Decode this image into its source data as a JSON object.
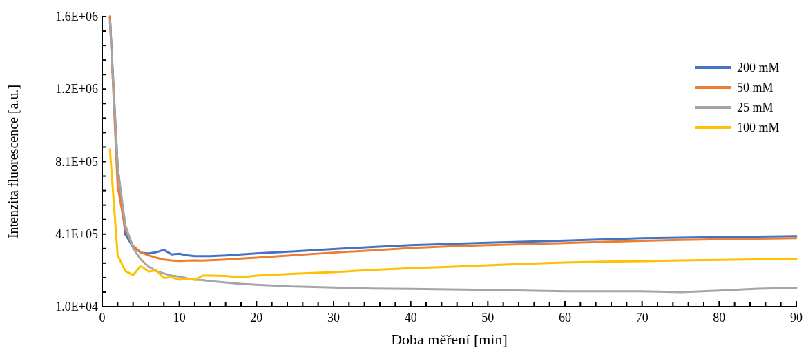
{
  "chart_data": {
    "type": "line",
    "xlabel": "Doba měření [min]",
    "ylabel": "Intenzita fluorescence [a.u.]",
    "x": [
      1,
      2,
      3,
      4,
      5,
      6,
      7,
      8,
      9,
      10,
      11,
      12,
      13,
      14,
      16,
      18,
      20,
      25,
      30,
      35,
      40,
      45,
      50,
      55,
      60,
      65,
      70,
      75,
      80,
      85,
      90
    ],
    "series": [
      {
        "name": "200 mM",
        "color": "#4472c4",
        "values": [
          1600000,
          780000,
          406000,
          338000,
          306000,
          301000,
          308000,
          321000,
          296000,
          300000,
          291000,
          287000,
          287000,
          287000,
          290000,
          296000,
          302000,
          313000,
          325000,
          337000,
          347000,
          354000,
          360000,
          366000,
          372000,
          378000,
          385000,
          388000,
          390000,
          393000,
          396000
        ]
      },
      {
        "name": "50 mM",
        "color": "#ed7d31",
        "values": [
          1600000,
          671000,
          432000,
          343000,
          308000,
          291000,
          278000,
          268000,
          263000,
          260000,
          262000,
          263000,
          262000,
          264000,
          268000,
          273000,
          278000,
          292000,
          306000,
          318000,
          331000,
          340000,
          347000,
          353000,
          358000,
          365000,
          371000,
          375000,
          379000,
          382000,
          385000
        ]
      },
      {
        "name": "25 mM",
        "color": "#a5a5a5",
        "values": [
          1577000,
          772000,
          457000,
          331000,
          268000,
          230000,
          205000,
          192000,
          180000,
          174000,
          165000,
          157000,
          155000,
          150000,
          142000,
          135000,
          130000,
          120000,
          115000,
          109000,
          107000,
          104000,
          102000,
          98000,
          94000,
          94000,
          94000,
          89000,
          98000,
          108000,
          113000
        ]
      },
      {
        "name": "100 mM",
        "color": "#ffc000",
        "values": [
          872000,
          293000,
          205000,
          183000,
          233000,
          203000,
          208000,
          167000,
          171000,
          157000,
          164000,
          157000,
          180000,
          180000,
          178000,
          170000,
          180000,
          190000,
          199000,
          211000,
          221000,
          228000,
          237000,
          245000,
          252000,
          256000,
          259000,
          263000,
          266000,
          269000,
          272000
        ]
      }
    ],
    "xlim": [
      0,
      90
    ],
    "xticks": [
      0,
      {
        "value": 2,
        "label": null
      },
      {
        "value": 4,
        "label": null
      },
      {
        "value": 6,
        "label": null
      },
      {
        "value": 8,
        "label": null
      },
      10,
      {
        "value": 12,
        "label": null
      },
      {
        "value": 14,
        "label": null
      },
      {
        "value": 16,
        "label": null
      },
      {
        "value": 18,
        "label": null
      },
      20,
      {
        "value": 22,
        "label": null
      },
      {
        "value": 24,
        "label": null
      },
      {
        "value": 26,
        "label": null
      },
      {
        "value": 28,
        "label": null
      },
      30,
      {
        "value": 32,
        "label": null
      },
      {
        "value": 34,
        "label": null
      },
      {
        "value": 36,
        "label": null
      },
      {
        "value": 38,
        "label": null
      },
      40,
      {
        "value": 42,
        "label": null
      },
      {
        "value": 44,
        "label": null
      },
      {
        "value": 46,
        "label": null
      },
      {
        "value": 48,
        "label": null
      },
      50,
      {
        "value": 52,
        "label": null
      },
      {
        "value": 54,
        "label": null
      },
      {
        "value": 56,
        "label": null
      },
      {
        "value": 58,
        "label": null
      },
      60,
      {
        "value": 62,
        "label": null
      },
      {
        "value": 64,
        "label": null
      },
      {
        "value": 66,
        "label": null
      },
      {
        "value": 68,
        "label": null
      },
      70,
      {
        "value": 72,
        "label": null
      },
      {
        "value": 74,
        "label": null
      },
      {
        "value": 76,
        "label": null
      },
      {
        "value": 78,
        "label": null
      },
      80,
      {
        "value": 82,
        "label": null
      },
      {
        "value": 84,
        "label": null
      },
      {
        "value": 86,
        "label": null
      },
      {
        "value": 88,
        "label": null
      },
      90
    ],
    "ylim": [
      10000,
      1600000
    ],
    "yticks": [
      {
        "value": 10000,
        "label": "1.0E+04"
      },
      {
        "value": 89500,
        "label": null
      },
      {
        "value": 169000,
        "label": null
      },
      {
        "value": 248500,
        "label": null
      },
      {
        "value": 328000,
        "label": null
      },
      {
        "value": 407500,
        "label": "4.1E+05"
      },
      {
        "value": 487000,
        "label": null
      },
      {
        "value": 566500,
        "label": null
      },
      {
        "value": 646000,
        "label": null
      },
      {
        "value": 725500,
        "label": null
      },
      {
        "value": 805000,
        "label": "8.1E+05"
      },
      {
        "value": 884500,
        "label": null
      },
      {
        "value": 964000,
        "label": null
      },
      {
        "value": 1043500,
        "label": null
      },
      {
        "value": 1123000,
        "label": null
      },
      {
        "value": 1202500,
        "label": "1.2E+06"
      },
      {
        "value": 1282000,
        "label": null
      },
      {
        "value": 1361500,
        "label": null
      },
      {
        "value": 1441000,
        "label": null
      },
      {
        "value": 1520500,
        "label": null
      },
      {
        "value": 1600000,
        "label": "1.6E+06"
      }
    ],
    "grid": false,
    "legend": "right",
    "marker": "none",
    "line_style": "solid"
  }
}
